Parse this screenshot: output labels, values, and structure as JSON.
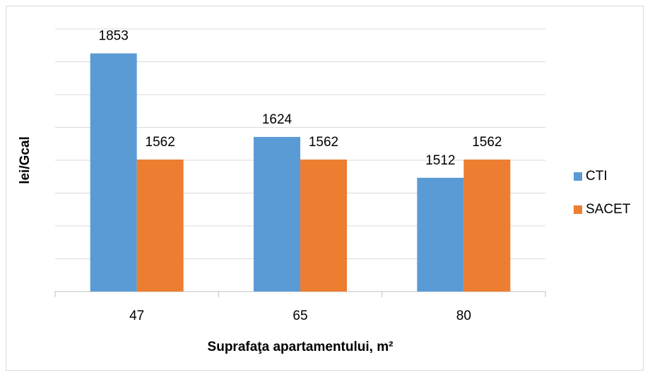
{
  "chart_data": {
    "type": "bar",
    "x_label": "Suprafaţa apartamentului, m²",
    "y_label": "lei/Gcal",
    "categories": [
      "47",
      "65",
      "80"
    ],
    "series": [
      {
        "name": "CTI",
        "color": "#5b9bd5",
        "values": [
          1853,
          1624,
          1512
        ]
      },
      {
        "name": "SACET",
        "color": "#ed7d31",
        "values": [
          1562,
          1562,
          1562
        ]
      }
    ],
    "ylim": [
      1200,
      1920
    ],
    "yticks": [
      1200,
      1290,
      1380,
      1470,
      1560,
      1650,
      1740,
      1830,
      1920
    ],
    "grid": true,
    "legend": "right"
  }
}
